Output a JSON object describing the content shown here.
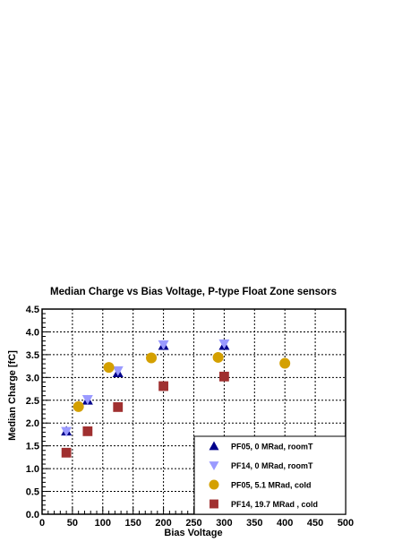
{
  "chart_data": {
    "type": "scatter",
    "title": "Median Charge vs Bias Voltage, P-type Float Zone sensors",
    "xlabel": "Bias Voltage",
    "ylabel": "Median Charge [fC]",
    "xlim": [
      0,
      500
    ],
    "ylim": [
      0,
      4.5
    ],
    "x_ticks": [
      0,
      50,
      100,
      150,
      200,
      250,
      300,
      350,
      400,
      450,
      500
    ],
    "x_tick_labels": [
      "0",
      "50",
      "100",
      "150",
      "200",
      "250",
      "300",
      "350",
      "400",
      "450",
      "500"
    ],
    "y_ticks": [
      0,
      0.5,
      1,
      1.5,
      2,
      2.5,
      3,
      3.5,
      4,
      4.5
    ],
    "y_tick_labels": [
      "0.0",
      "0.5",
      "1.0",
      "1.5",
      "2.0",
      "2.5",
      "3.0",
      "3.5",
      "4.0",
      "4.5"
    ],
    "grid": true,
    "legend_position": "bottom-right",
    "series": [
      {
        "name": "PF05,      0 MRad,   roomT",
        "marker": "triangle-up",
        "color": "#00008b",
        "x": [
          40,
          75,
          125,
          200,
          300
        ],
        "y": [
          1.82,
          2.5,
          3.1,
          3.7,
          3.7
        ]
      },
      {
        "name": "PF14,      0 MRad,   roomT",
        "marker": "triangle-down",
        "color": "#9a9aff",
        "x": [
          40,
          75,
          125,
          200,
          300
        ],
        "y": [
          1.82,
          2.52,
          3.15,
          3.72,
          3.74
        ]
      },
      {
        "name": "PF05,   5.1 MRad,   cold",
        "marker": "circle",
        "color": "#d4a000",
        "x": [
          60,
          110,
          180,
          290,
          400
        ],
        "y": [
          2.36,
          3.22,
          3.43,
          3.44,
          3.31
        ]
      },
      {
        "name": "PF14, 19.7 MRad ,  cold",
        "marker": "square",
        "color": "#a03030",
        "x": [
          40,
          75,
          125,
          200,
          300
        ],
        "y": [
          1.35,
          1.82,
          2.35,
          2.81,
          3.02
        ]
      }
    ]
  }
}
